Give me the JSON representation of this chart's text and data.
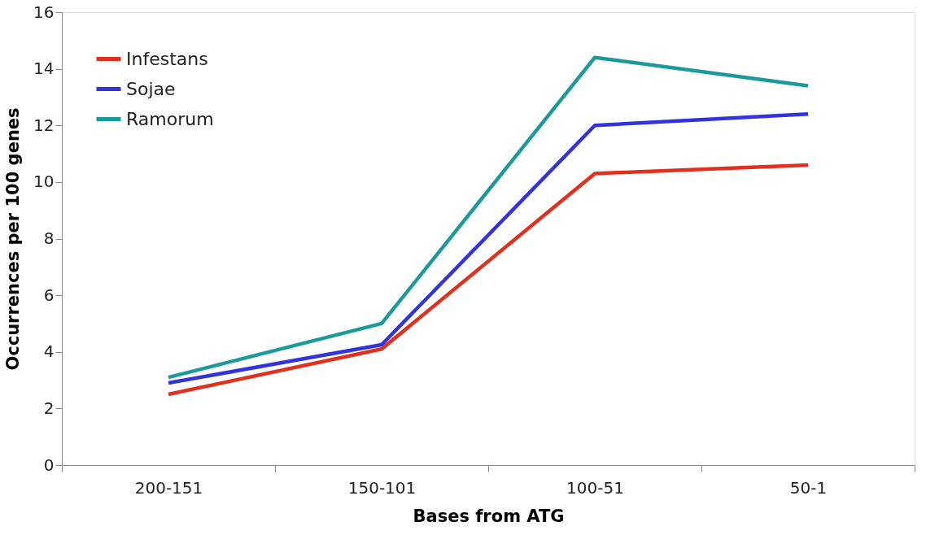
{
  "chart_data": {
    "type": "line",
    "xlabel": "Bases from ATG",
    "ylabel": "Occurrences per 100 genes",
    "categories": [
      "200-151",
      "150-101",
      "100-51",
      "50-1"
    ],
    "series": [
      {
        "name": "Infestans",
        "color": "#e0301e",
        "values": [
          2.5,
          4.1,
          10.3,
          10.6
        ]
      },
      {
        "name": "Sojae",
        "color": "#3333dd",
        "values": [
          2.9,
          4.25,
          12.0,
          12.4
        ]
      },
      {
        "name": "Ramorum",
        "color": "#1a9a9a",
        "values": [
          3.1,
          5.0,
          14.4,
          13.4
        ]
      }
    ],
    "ylim": [
      0,
      16
    ],
    "yticks": [
      0,
      2,
      4,
      6,
      8,
      10,
      12,
      14,
      16
    ],
    "grid": false,
    "legend": "top left",
    "marker": "none",
    "line_style": "solid"
  }
}
